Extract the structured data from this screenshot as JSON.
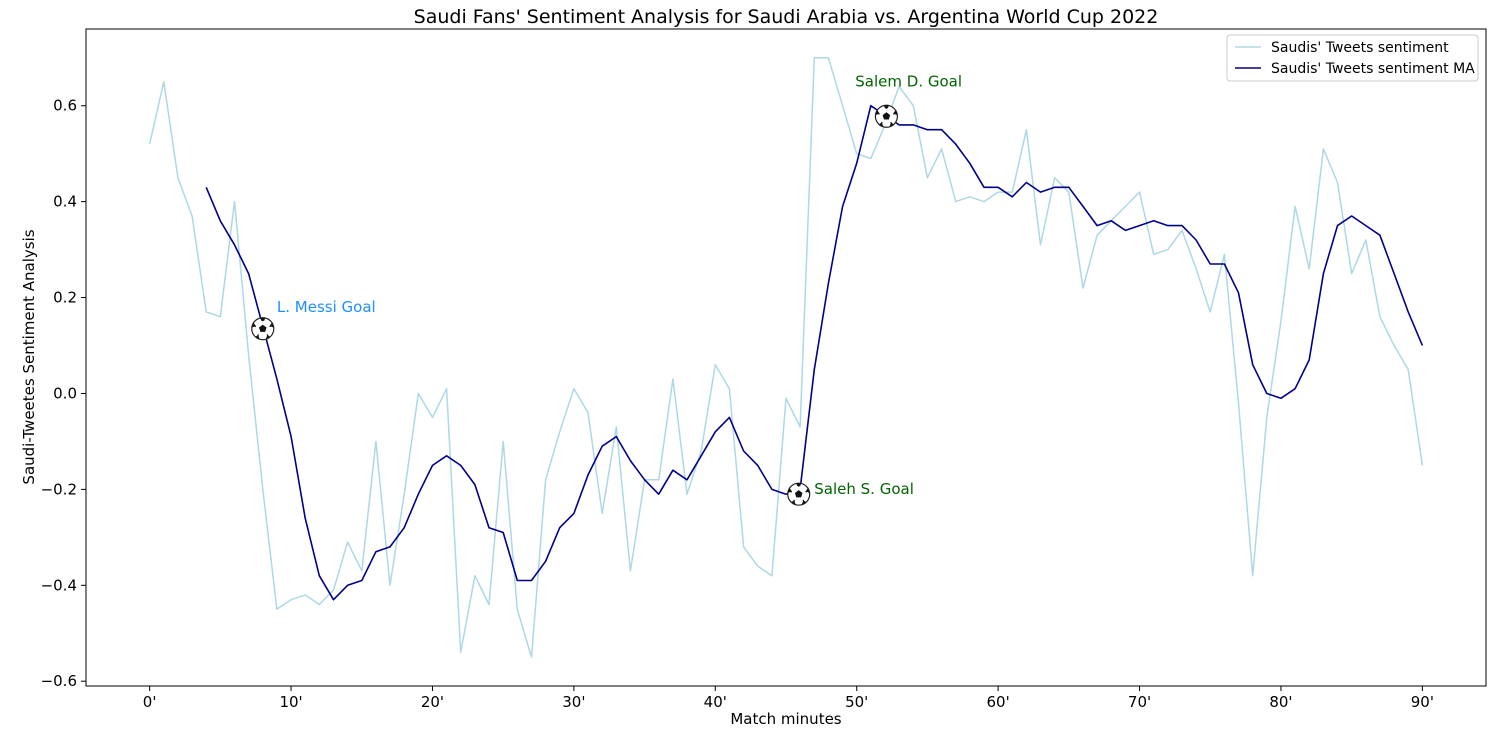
{
  "chart_data": {
    "type": "line",
    "title": "Saudi Fans' Sentiment Analysis for Saudi Arabia vs. Argentina World Cup 2022",
    "xlabel": "Match minutes",
    "ylabel": "Saudi-Tweetes Sentiment Analysis",
    "xlim": [
      -4.5,
      94.5
    ],
    "ylim": [
      -0.61,
      0.76
    ],
    "xticks": [
      0,
      10,
      20,
      30,
      40,
      50,
      60,
      70,
      80,
      90
    ],
    "xtick_labels": [
      "0'",
      "10'",
      "20'",
      "30'",
      "40'",
      "50'",
      "60'",
      "70'",
      "80'",
      "90'"
    ],
    "yticks": [
      -0.6,
      -0.4,
      -0.2,
      0.0,
      0.2,
      0.4,
      0.6
    ],
    "ytick_labels": [
      "−0.6",
      "−0.4",
      "−0.2",
      "0.0",
      "0.2",
      "0.4",
      "0.6"
    ],
    "grid": false,
    "legend_position": "top-right",
    "series": [
      {
        "name": "Saudis' Tweets sentiment",
        "color": "#add8e6",
        "x": [
          0,
          1,
          2,
          3,
          4,
          5,
          6,
          7,
          8,
          9,
          10,
          11,
          12,
          13,
          14,
          15,
          16,
          17,
          18,
          19,
          20,
          21,
          22,
          23,
          24,
          25,
          26,
          27,
          28,
          29,
          30,
          31,
          32,
          33,
          34,
          35,
          36,
          37,
          38,
          39,
          40,
          41,
          42,
          43,
          44,
          45,
          46,
          47,
          48,
          49,
          50,
          51,
          52,
          53,
          54,
          55,
          56,
          57,
          58,
          59,
          60,
          61,
          62,
          63,
          64,
          65,
          66,
          67,
          68,
          69,
          70,
          71,
          72,
          73,
          74,
          75,
          76,
          77,
          78,
          79,
          80,
          81,
          82,
          83,
          84,
          85,
          86,
          87,
          88,
          89,
          90
        ],
        "values": [
          0.52,
          0.65,
          0.45,
          0.37,
          0.17,
          0.16,
          0.4,
          0.08,
          -0.2,
          -0.45,
          -0.43,
          -0.42,
          -0.44,
          -0.41,
          -0.31,
          -0.37,
          -0.1,
          -0.4,
          -0.21,
          0.0,
          -0.05,
          0.01,
          -0.54,
          -0.38,
          -0.44,
          -0.1,
          -0.45,
          -0.55,
          -0.18,
          -0.08,
          0.01,
          -0.04,
          -0.25,
          -0.07,
          -0.37,
          -0.18,
          -0.18,
          0.03,
          -0.21,
          -0.12,
          0.06,
          0.01,
          -0.32,
          -0.36,
          -0.38,
          -0.01,
          -0.07,
          0.7,
          0.7,
          0.6,
          0.5,
          0.49,
          0.56,
          0.64,
          0.6,
          0.45,
          0.51,
          0.4,
          0.41,
          0.4,
          0.42,
          0.42,
          0.55,
          0.31,
          0.45,
          0.42,
          0.22,
          0.33,
          0.36,
          0.39,
          0.42,
          0.29,
          0.3,
          0.34,
          0.26,
          0.17,
          0.29,
          -0.02,
          -0.38,
          -0.05,
          0.15,
          0.39,
          0.26,
          0.51,
          0.44,
          0.25,
          0.32,
          0.16,
          0.1,
          0.05,
          -0.15
        ]
      },
      {
        "name": "Saudis' Tweets sentiment MA",
        "color": "#00008b",
        "x": [
          4,
          5,
          6,
          7,
          8,
          9,
          10,
          11,
          12,
          13,
          14,
          15,
          16,
          17,
          18,
          19,
          20,
          21,
          22,
          23,
          24,
          25,
          26,
          27,
          28,
          29,
          30,
          31,
          32,
          33,
          34,
          35,
          36,
          37,
          38,
          39,
          40,
          41,
          42,
          43,
          44,
          45,
          46,
          47,
          48,
          49,
          50,
          51,
          52,
          53,
          54,
          55,
          56,
          57,
          58,
          59,
          60,
          61,
          62,
          63,
          64,
          65,
          66,
          67,
          68,
          69,
          70,
          71,
          72,
          73,
          74,
          75,
          76,
          77,
          78,
          79,
          80,
          81,
          82,
          83,
          84,
          85,
          86,
          87,
          88,
          89,
          90
        ],
        "values": [
          0.43,
          0.36,
          0.31,
          0.25,
          0.14,
          0.03,
          -0.09,
          -0.26,
          -0.38,
          -0.43,
          -0.4,
          -0.39,
          -0.33,
          -0.32,
          -0.28,
          -0.21,
          -0.15,
          -0.13,
          -0.15,
          -0.19,
          -0.28,
          -0.29,
          -0.39,
          -0.39,
          -0.35,
          -0.28,
          -0.25,
          -0.17,
          -0.11,
          -0.09,
          -0.14,
          -0.18,
          -0.21,
          -0.16,
          -0.18,
          -0.13,
          -0.08,
          -0.05,
          -0.12,
          -0.15,
          -0.2,
          -0.21,
          -0.2,
          0.05,
          0.23,
          0.39,
          0.48,
          0.6,
          0.58,
          0.56,
          0.56,
          0.55,
          0.55,
          0.52,
          0.48,
          0.43,
          0.43,
          0.41,
          0.44,
          0.42,
          0.43,
          0.43,
          0.39,
          0.35,
          0.36,
          0.34,
          0.35,
          0.36,
          0.35,
          0.35,
          0.32,
          0.27,
          0.27,
          0.21,
          0.06,
          0.0,
          -0.01,
          0.01,
          0.07,
          0.25,
          0.35,
          0.37,
          0.35,
          0.33,
          0.25,
          0.17,
          0.1
        ]
      }
    ],
    "annotations": [
      {
        "text": "L. Messi Goal",
        "color": "#1e90ff",
        "ball_x": 8,
        "ball_y": 0.135,
        "text_x": 9,
        "text_y": 0.17
      },
      {
        "text": "Saleh S. Goal",
        "color": "#006400",
        "ball_x": 45.9,
        "ball_y": -0.21,
        "text_x": 47,
        "text_y": -0.21
      },
      {
        "text": "Salem D. Goal",
        "color": "#006400",
        "ball_x": 52.1,
        "ball_y": 0.578,
        "text_x": 49.9,
        "text_y": 0.64
      }
    ]
  }
}
